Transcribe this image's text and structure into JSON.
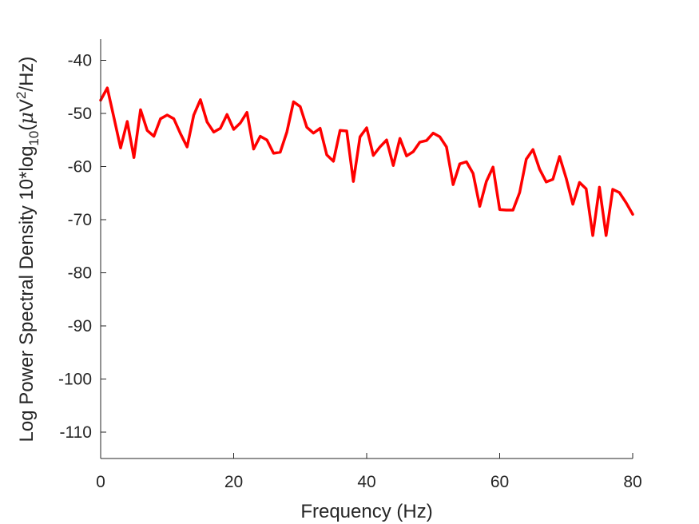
{
  "chart_data": {
    "type": "line",
    "title": "",
    "xlabel": "Frequency (Hz)",
    "ylabel_parts": {
      "prefix": "Log Power Spectral Density 10*log",
      "sub": "10",
      "mid_open": "(",
      "mu": "μ",
      "unit_v": "V",
      "sup": "2",
      "suffix": "/Hz)"
    },
    "xlim": [
      0,
      80
    ],
    "ylim": [
      -115,
      -36
    ],
    "xticks": [
      0,
      20,
      40,
      60,
      80
    ],
    "yticks": [
      -110,
      -100,
      -90,
      -80,
      -70,
      -60,
      -50,
      -40
    ],
    "grid": false,
    "series": [
      {
        "color": "#ff0000",
        "x": [
          0,
          1,
          2,
          3,
          4,
          5,
          6,
          7,
          8,
          9,
          10,
          11,
          12,
          13,
          14,
          15,
          16,
          17,
          18,
          19,
          20,
          21,
          22,
          23,
          24,
          25,
          26,
          27,
          28,
          29,
          30,
          31,
          32,
          33,
          34,
          35,
          36,
          37,
          38,
          39,
          40,
          41,
          42,
          43,
          44,
          45,
          46,
          47,
          48,
          49,
          50,
          51,
          52,
          53,
          54,
          55,
          56,
          57,
          58,
          59,
          60,
          61,
          62,
          63,
          64,
          65,
          66,
          67,
          68,
          69,
          70,
          71,
          72,
          73,
          74,
          75,
          76,
          77,
          78,
          79,
          80
        ],
        "values": [
          -47.5,
          -45.2,
          -50.8,
          -56.5,
          -51.5,
          -58.3,
          -49.3,
          -53.2,
          -54.3,
          -51.0,
          -50.3,
          -51.0,
          -53.8,
          -56.3,
          -50.3,
          -47.4,
          -51.6,
          -53.5,
          -52.8,
          -50.2,
          -53.0,
          -51.8,
          -49.8,
          -56.7,
          -54.3,
          -55.0,
          -57.5,
          -57.3,
          -53.5,
          -47.8,
          -48.7,
          -52.6,
          -53.7,
          -52.8,
          -57.8,
          -59.0,
          -53.2,
          -53.3,
          -62.8,
          -54.4,
          -52.7,
          -57.9,
          -56.3,
          -55.0,
          -59.8,
          -54.7,
          -58.0,
          -57.2,
          -55.4,
          -55.1,
          -53.7,
          -54.4,
          -56.3,
          -63.4,
          -59.5,
          -59.1,
          -61.3,
          -67.5,
          -62.8,
          -60.1,
          -68.1,
          -68.2,
          -68.2,
          -64.9,
          -58.6,
          -56.8,
          -60.5,
          -62.9,
          -62.4,
          -58.1,
          -62.2,
          -67.1,
          -63.0,
          -64.2,
          -73.0,
          -63.9,
          -73.0,
          -64.3,
          -64.9,
          -66.8,
          -69.0
        ]
      }
    ]
  }
}
